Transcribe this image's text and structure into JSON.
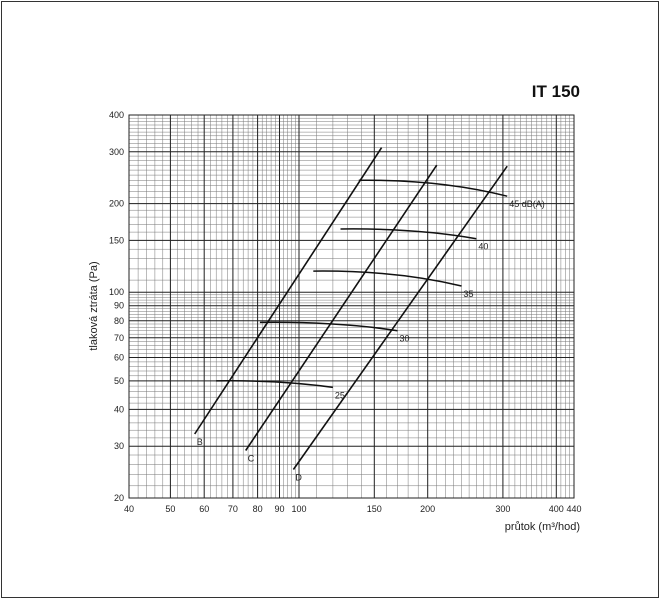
{
  "chart_data": {
    "type": "line",
    "title": "IT 150",
    "xlabel": "průtok (m³/hod)",
    "ylabel": "tlaková ztráta (Pa)",
    "xscale": "log",
    "yscale": "log",
    "xlim": [
      40,
      440
    ],
    "ylim": [
      20,
      400
    ],
    "xticks": [
      40,
      50,
      60,
      70,
      80,
      90,
      100,
      150,
      200,
      300,
      400,
      440
    ],
    "yticks": [
      20,
      30,
      40,
      50,
      60,
      70,
      80,
      90,
      100,
      150,
      200,
      300,
      400
    ],
    "grid": true,
    "series": [
      {
        "name": "B",
        "x": [
          57,
          156
        ],
        "y": [
          33,
          310
        ]
      },
      {
        "name": "C",
        "x": [
          75,
          210
        ],
        "y": [
          29,
          270
        ]
      },
      {
        "name": "D",
        "x": [
          97,
          307
        ],
        "y": [
          25,
          268
        ]
      }
    ],
    "annotations": [
      {
        "label": "25",
        "x": [
          64,
          120
        ],
        "y": [
          50,
          47.5
        ]
      },
      {
        "label": "30",
        "x": [
          81,
          170
        ],
        "y": [
          79,
          74
        ]
      },
      {
        "label": "35",
        "x": [
          108,
          240
        ],
        "y": [
          118,
          105
        ]
      },
      {
        "label": "40",
        "x": [
          125,
          260
        ],
        "y": [
          164,
          152
        ]
      },
      {
        "label": "45 dB(A)",
        "x": [
          138,
          307
        ],
        "y": [
          240,
          212
        ]
      }
    ]
  }
}
